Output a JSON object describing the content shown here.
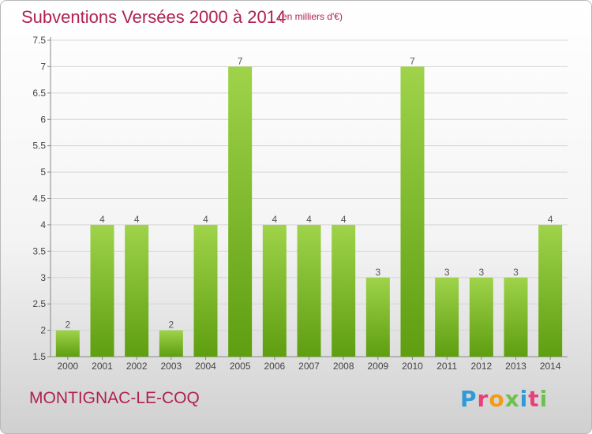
{
  "header": {
    "title": "Subventions Versées 2000 à 2014",
    "unit": "(en milliers d'€)"
  },
  "footer": {
    "commune": "MONTIGNAC-LE-COQ",
    "logo": "Proxiti",
    "logo_colors": [
      "#2e9ad6",
      "#e8407a",
      "#f39c12",
      "#6cc24a",
      "#2e9ad6",
      "#e8407a",
      "#6cc24a"
    ]
  },
  "chart_data": {
    "type": "bar",
    "title": "Subventions Versées 2000 à 2014",
    "categories": [
      "2000",
      "2001",
      "2002",
      "2003",
      "2004",
      "2005",
      "2006",
      "2007",
      "2008",
      "2009",
      "2010",
      "2011",
      "2012",
      "2013",
      "2014"
    ],
    "values": [
      2,
      4,
      4,
      2,
      4,
      7,
      4,
      4,
      4,
      3,
      7,
      3,
      3,
      3,
      4
    ],
    "ylim": [
      1.5,
      7.5
    ],
    "yticks": [
      "1.5",
      "2",
      "2.5",
      "3",
      "3.5",
      "4",
      "4.5",
      "5",
      "5.5",
      "6",
      "6.5",
      "7",
      "7.5"
    ],
    "grid": true,
    "bar_color_top": "#9fd34a",
    "bar_color_bottom": "#5e9e10"
  }
}
